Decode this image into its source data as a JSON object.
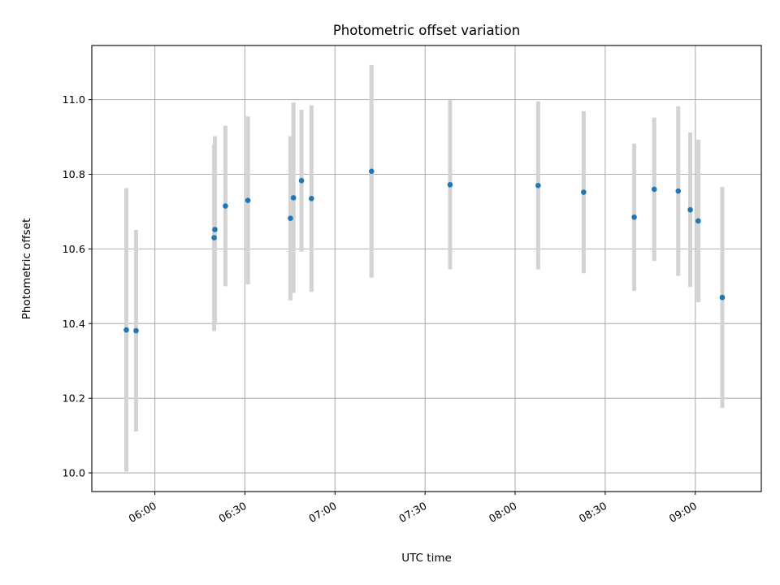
{
  "chart_data": {
    "type": "scatter",
    "title": "Photometric offset variation",
    "xlabel": "UTC time",
    "ylabel": "Photometric offset",
    "xlim": [
      "05:39",
      "09:22"
    ],
    "ylim": [
      9.95,
      11.145
    ],
    "x_ticks": [
      "06:00",
      "06:30",
      "07:00",
      "07:30",
      "08:00",
      "08:30",
      "09:00"
    ],
    "y_ticks": [
      "10.0",
      "10.2",
      "10.4",
      "10.6",
      "10.8",
      "11.0"
    ],
    "grid": true,
    "colors": {
      "points": "#1f77b4",
      "errorbars": "#d3d3d3"
    },
    "series": [
      {
        "x": [
          "05:50:30",
          "05:53:45",
          "06:19:45",
          "06:20:00",
          "06:23:30",
          "06:31:00",
          "06:45:10",
          "06:46:10",
          "06:48:50",
          "06:52:10",
          "07:12:10",
          "07:38:20",
          "08:07:40",
          "08:22:50",
          "08:39:40",
          "08:46:20",
          "08:54:20",
          "08:58:20",
          "09:01:00",
          "09:09:00"
        ],
        "y": [
          10.383,
          10.381,
          10.63,
          10.652,
          10.715,
          10.73,
          10.682,
          10.737,
          10.783,
          10.735,
          10.808,
          10.772,
          10.77,
          10.752,
          10.685,
          10.76,
          10.755,
          10.705,
          10.675,
          10.47
        ],
        "err": [
          0.38,
          0.27,
          0.25,
          0.25,
          0.215,
          0.225,
          0.22,
          0.255,
          0.19,
          0.25,
          0.285,
          0.227,
          0.225,
          0.217,
          0.197,
          0.192,
          0.227,
          0.207,
          0.218,
          0.296
        ]
      }
    ]
  }
}
